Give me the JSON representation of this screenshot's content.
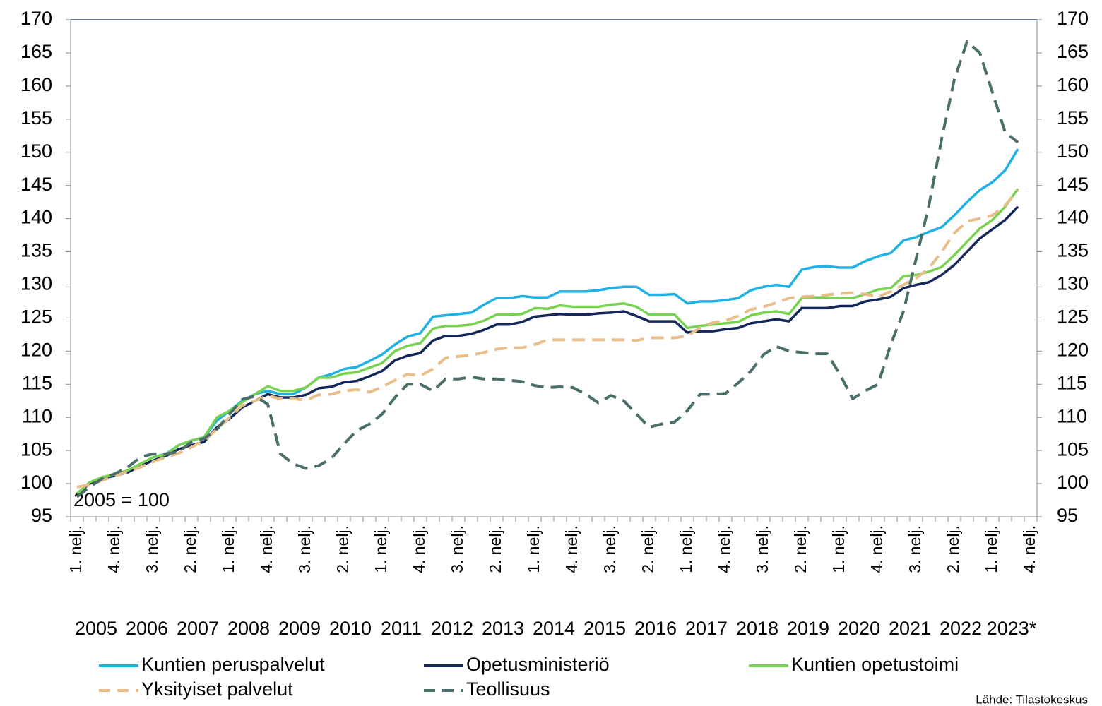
{
  "chart_data": {
    "type": "line",
    "annotation": "2005 = 100",
    "source": "Lähde: Tilastokeskus",
    "categories": [
      "1. nelj.",
      null,
      null,
      "4. nelj.",
      null,
      null,
      "3. nelj.",
      null,
      null,
      "2. nelj.",
      null,
      null,
      "1. nelj.",
      null,
      null,
      "4. nelj.",
      null,
      null,
      "3. nelj.",
      null,
      null,
      "2. nelj.",
      null,
      null,
      "1. nelj.",
      null,
      null,
      "4. nelj.",
      null,
      null,
      "3. nelj.",
      null,
      null,
      "2. nelj.",
      null,
      null,
      "1. nelj.",
      null,
      null,
      "4. nelj.",
      null,
      null,
      "3. nelj.",
      null,
      null,
      "2. nelj.",
      null,
      null,
      "1. nelj.",
      null,
      null,
      "4. nelj.",
      null,
      null,
      "3. nelj.",
      null,
      null,
      "2. nelj.",
      null,
      null,
      "1. nelj.",
      null,
      null,
      "4. nelj.",
      null,
      null,
      "3. nelj.",
      null,
      null,
      "2. nelj.",
      null,
      null,
      "1. nelj.",
      null,
      null,
      "4. nelj."
    ],
    "years": [
      "2005",
      "2006",
      "2007",
      "2008",
      "2009",
      "2010",
      "2011",
      "2012",
      "2013",
      "2014",
      "2015",
      "2016",
      "2017",
      "2018",
      "2019",
      "2020",
      "2021",
      "2022",
      "2023*"
    ],
    "ylim": [
      95,
      170
    ],
    "yticks": [
      95,
      100,
      105,
      110,
      115,
      120,
      125,
      130,
      135,
      140,
      145,
      150,
      155,
      160,
      165,
      170
    ],
    "y2lim": [
      95,
      170
    ],
    "y2ticks": [
      95,
      100,
      105,
      110,
      115,
      120,
      125,
      130,
      135,
      140,
      145,
      150,
      155,
      160,
      165,
      170
    ],
    "grid": false,
    "legend": "bottom",
    "series": [
      {
        "name": "Kuntien peruspalvelut",
        "color": "#1fb1e3",
        "style": "solid",
        "values": [
          98.5,
          100,
          100.8,
          101.3,
          102,
          103,
          104,
          104.5,
          105.8,
          106.5,
          107,
          109.5,
          111,
          112.5,
          113.5,
          114,
          113.5,
          113.5,
          114.5,
          116,
          116.5,
          117.3,
          117.6,
          118.5,
          119.5,
          121,
          122.2,
          122.7,
          125.2,
          125.4,
          125.6,
          125.8,
          127,
          128,
          128,
          128.3,
          128.1,
          128.1,
          129,
          129,
          129,
          129.2,
          129.5,
          129.7,
          129.7,
          128.5,
          128.5,
          128.6,
          127.2,
          127.5,
          127.5,
          127.7,
          128,
          129.2,
          129.7,
          130,
          129.7,
          132.3,
          132.7,
          132.8,
          132.6,
          132.6,
          133.6,
          134.3,
          134.8,
          136.7,
          137.2,
          138,
          138.7,
          140.5,
          142.5,
          144.3,
          145.5,
          147.3,
          150.5,
          null
        ]
      },
      {
        "name": "Opetusministeriö",
        "color": "#14285a",
        "style": "solid",
        "values": [
          98.5,
          100,
          100.8,
          101.2,
          101.7,
          102.7,
          103.5,
          104.2,
          105.2,
          105.8,
          106.3,
          108.5,
          109.8,
          111.5,
          112.5,
          113.5,
          113,
          113,
          113.4,
          114.4,
          114.6,
          115.3,
          115.5,
          116.2,
          117,
          118.6,
          119.3,
          119.7,
          121.6,
          122.3,
          122.3,
          122.6,
          123.2,
          124,
          124,
          124.4,
          125.2,
          125.4,
          125.6,
          125.5,
          125.5,
          125.7,
          125.8,
          126,
          125.3,
          124.5,
          124.5,
          124.5,
          122.8,
          123,
          123,
          123.3,
          123.5,
          124.2,
          124.5,
          124.8,
          124.5,
          126.5,
          126.5,
          126.5,
          126.8,
          126.8,
          127.5,
          127.8,
          128.2,
          129.5,
          130,
          130.4,
          131.5,
          133,
          135,
          137,
          138.4,
          139.8,
          141.8,
          null
        ]
      },
      {
        "name": "Kuntien opetustoimi",
        "color": "#77d34f",
        "style": "solid",
        "values": [
          98.5,
          100.2,
          101,
          101.4,
          102,
          103,
          104,
          104.4,
          105.8,
          106.5,
          107,
          110,
          111,
          112.3,
          113.5,
          114.7,
          114,
          114,
          114.5,
          116,
          116,
          116.6,
          116.8,
          117.5,
          118.2,
          120,
          120.8,
          121.2,
          123.4,
          123.8,
          123.8,
          124,
          124.6,
          125.5,
          125.5,
          125.6,
          126.5,
          126.4,
          126.9,
          126.7,
          126.7,
          126.7,
          127,
          127.2,
          126.7,
          125.5,
          125.5,
          125.5,
          123.5,
          123.8,
          124,
          124.2,
          124.4,
          125.4,
          125.8,
          126,
          125.6,
          128,
          128.1,
          128.1,
          128,
          128,
          128.6,
          129.3,
          129.5,
          131.3,
          131.5,
          132,
          132.7,
          134.5,
          136.5,
          138.5,
          139.8,
          141.8,
          144.5,
          null
        ]
      },
      {
        "name": "Yksityiset palvelut",
        "color": "#e8be8a",
        "style": "dashed",
        "values": [
          99.5,
          99.8,
          100.5,
          101.2,
          101.8,
          102.5,
          103.3,
          104,
          104.6,
          105.5,
          106.5,
          108.2,
          110,
          111.8,
          112.5,
          113.3,
          112.8,
          112.8,
          112.6,
          113.4,
          113.5,
          114,
          114.2,
          113.8,
          114.6,
          115.6,
          116.5,
          116.3,
          117.3,
          119,
          119.2,
          119.4,
          119.8,
          120.3,
          120.5,
          120.5,
          121,
          121.7,
          121.7,
          121.7,
          121.7,
          121.7,
          121.7,
          121.7,
          121.6,
          122,
          122,
          122,
          122.3,
          123.5,
          124.3,
          124.6,
          125.3,
          126.3,
          126.7,
          127.3,
          128,
          128.2,
          128.3,
          128.5,
          128.7,
          128.8,
          128.6,
          128.2,
          129,
          130,
          131,
          132.5,
          135,
          137.8,
          139.6,
          140,
          140.5,
          142,
          144.3,
          null
        ]
      },
      {
        "name": "Teollisuus",
        "color": "#4a6e6a",
        "style": "dashed",
        "values": [
          98,
          99.5,
          100.8,
          101.5,
          102.5,
          104,
          104.5,
          104.5,
          104.8,
          106.3,
          106.8,
          108.2,
          110.5,
          112.7,
          113.2,
          112,
          104.5,
          103,
          102.3,
          102.7,
          103.8,
          106,
          108,
          109,
          110.5,
          113,
          115,
          115,
          114,
          115.8,
          115.8,
          116.1,
          115.8,
          115.8,
          115.6,
          115.4,
          114.8,
          114.5,
          114.6,
          114.5,
          113.5,
          112.2,
          113.3,
          112.5,
          110.5,
          108.5,
          109,
          109.3,
          111,
          113.5,
          113.5,
          113.6,
          115.2,
          117,
          119.5,
          120.7,
          120,
          119.8,
          119.6,
          119.6,
          116.5,
          112.8,
          114,
          115,
          121,
          126,
          134,
          142,
          152,
          161,
          166.7,
          165,
          159,
          153,
          151.5,
          null
        ]
      }
    ]
  }
}
